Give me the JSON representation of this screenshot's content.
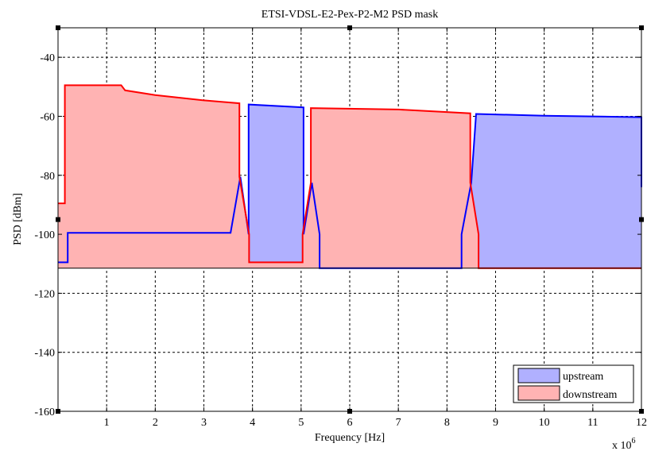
{
  "chart_data": {
    "type": "area",
    "title": "ETSI-VDSL-E2-Pex-P2-M2 PSD mask",
    "xlabel": "Frequency [Hz]",
    "ylabel": "PSD [dBm]",
    "x_multiplier_base": "x 10",
    "x_multiplier_exp": "6",
    "xlim": [
      0,
      12
    ],
    "ylim": [
      -160,
      -30
    ],
    "xticks": [
      1,
      2,
      3,
      4,
      5,
      6,
      7,
      8,
      9,
      10,
      11,
      12
    ],
    "xtick_labels": [
      "1",
      "2",
      "3",
      "4",
      "5",
      "6",
      "7",
      "8",
      "9",
      "10",
      "11",
      "12"
    ],
    "yticks": [
      -160,
      -140,
      -120,
      -100,
      -80,
      -60,
      -40
    ],
    "ytick_labels": [
      "-160",
      "-140",
      "-120",
      "-100",
      "-80",
      "-60",
      "-40"
    ],
    "baseline": -111.5,
    "grid": true,
    "legend_position": "bottom-right",
    "series": [
      {
        "name": "upstream",
        "line_color": "#0000ff",
        "fill_color": "#b0b0ff",
        "x": [
          0,
          0.25,
          0.25,
          3.55,
          3.75,
          3.75,
          4.35,
          4.35,
          4.9,
          4.9,
          5.2,
          5.2,
          10,
          12,
          12
        ],
        "y": [
          -109.5,
          -109.5,
          -99.5,
          -99.5,
          -80.5,
          -56,
          -56.4,
          -57,
          -57.7,
          -58.5,
          -59.7,
          -60,
          -60.1,
          -60.3,
          -84
        ],
        "segments": [
          {
            "x": [
              0,
              0.2,
              0.2,
              3.55,
              3.75,
              3.92,
              3.92,
              5.05,
              5.05,
              5.22,
              5.38,
              5.38,
              8.3,
              8.3,
              8.5,
              8.6,
              10,
              12,
              12
            ],
            "y": [
              -109.5,
              -109.5,
              -99.5,
              -99.5,
              -80.5,
              -100,
              -56,
              -57,
              -100,
              -82.5,
              -100,
              -111.5,
              -111.5,
              -100,
              -82.5,
              -59.2,
              -59.8,
              -60.3,
              -84
            ]
          }
        ]
      },
      {
        "name": "downstream",
        "line_color": "#ff0000",
        "fill_color": "#ffb3b3",
        "x": [
          0,
          0.1,
          0.1,
          0.14,
          0.14,
          1.3,
          1.38,
          2,
          3,
          3.73,
          3.73,
          3.93,
          3.93,
          5.03,
          5.03,
          5.2,
          5.2,
          7,
          8.48,
          8.48,
          8.65,
          8.65,
          12
        ],
        "y": [
          -89.5,
          -89.5,
          -89.5,
          -89.5,
          -49.5,
          -49.5,
          -51.2,
          -52.8,
          -54.6,
          -55.6,
          -80.5,
          -100,
          -109.5,
          -109.5,
          -100,
          -82.5,
          -57.2,
          -57.7,
          -59,
          -82.5,
          -100,
          -111.5,
          -111.5
        ]
      }
    ]
  }
}
